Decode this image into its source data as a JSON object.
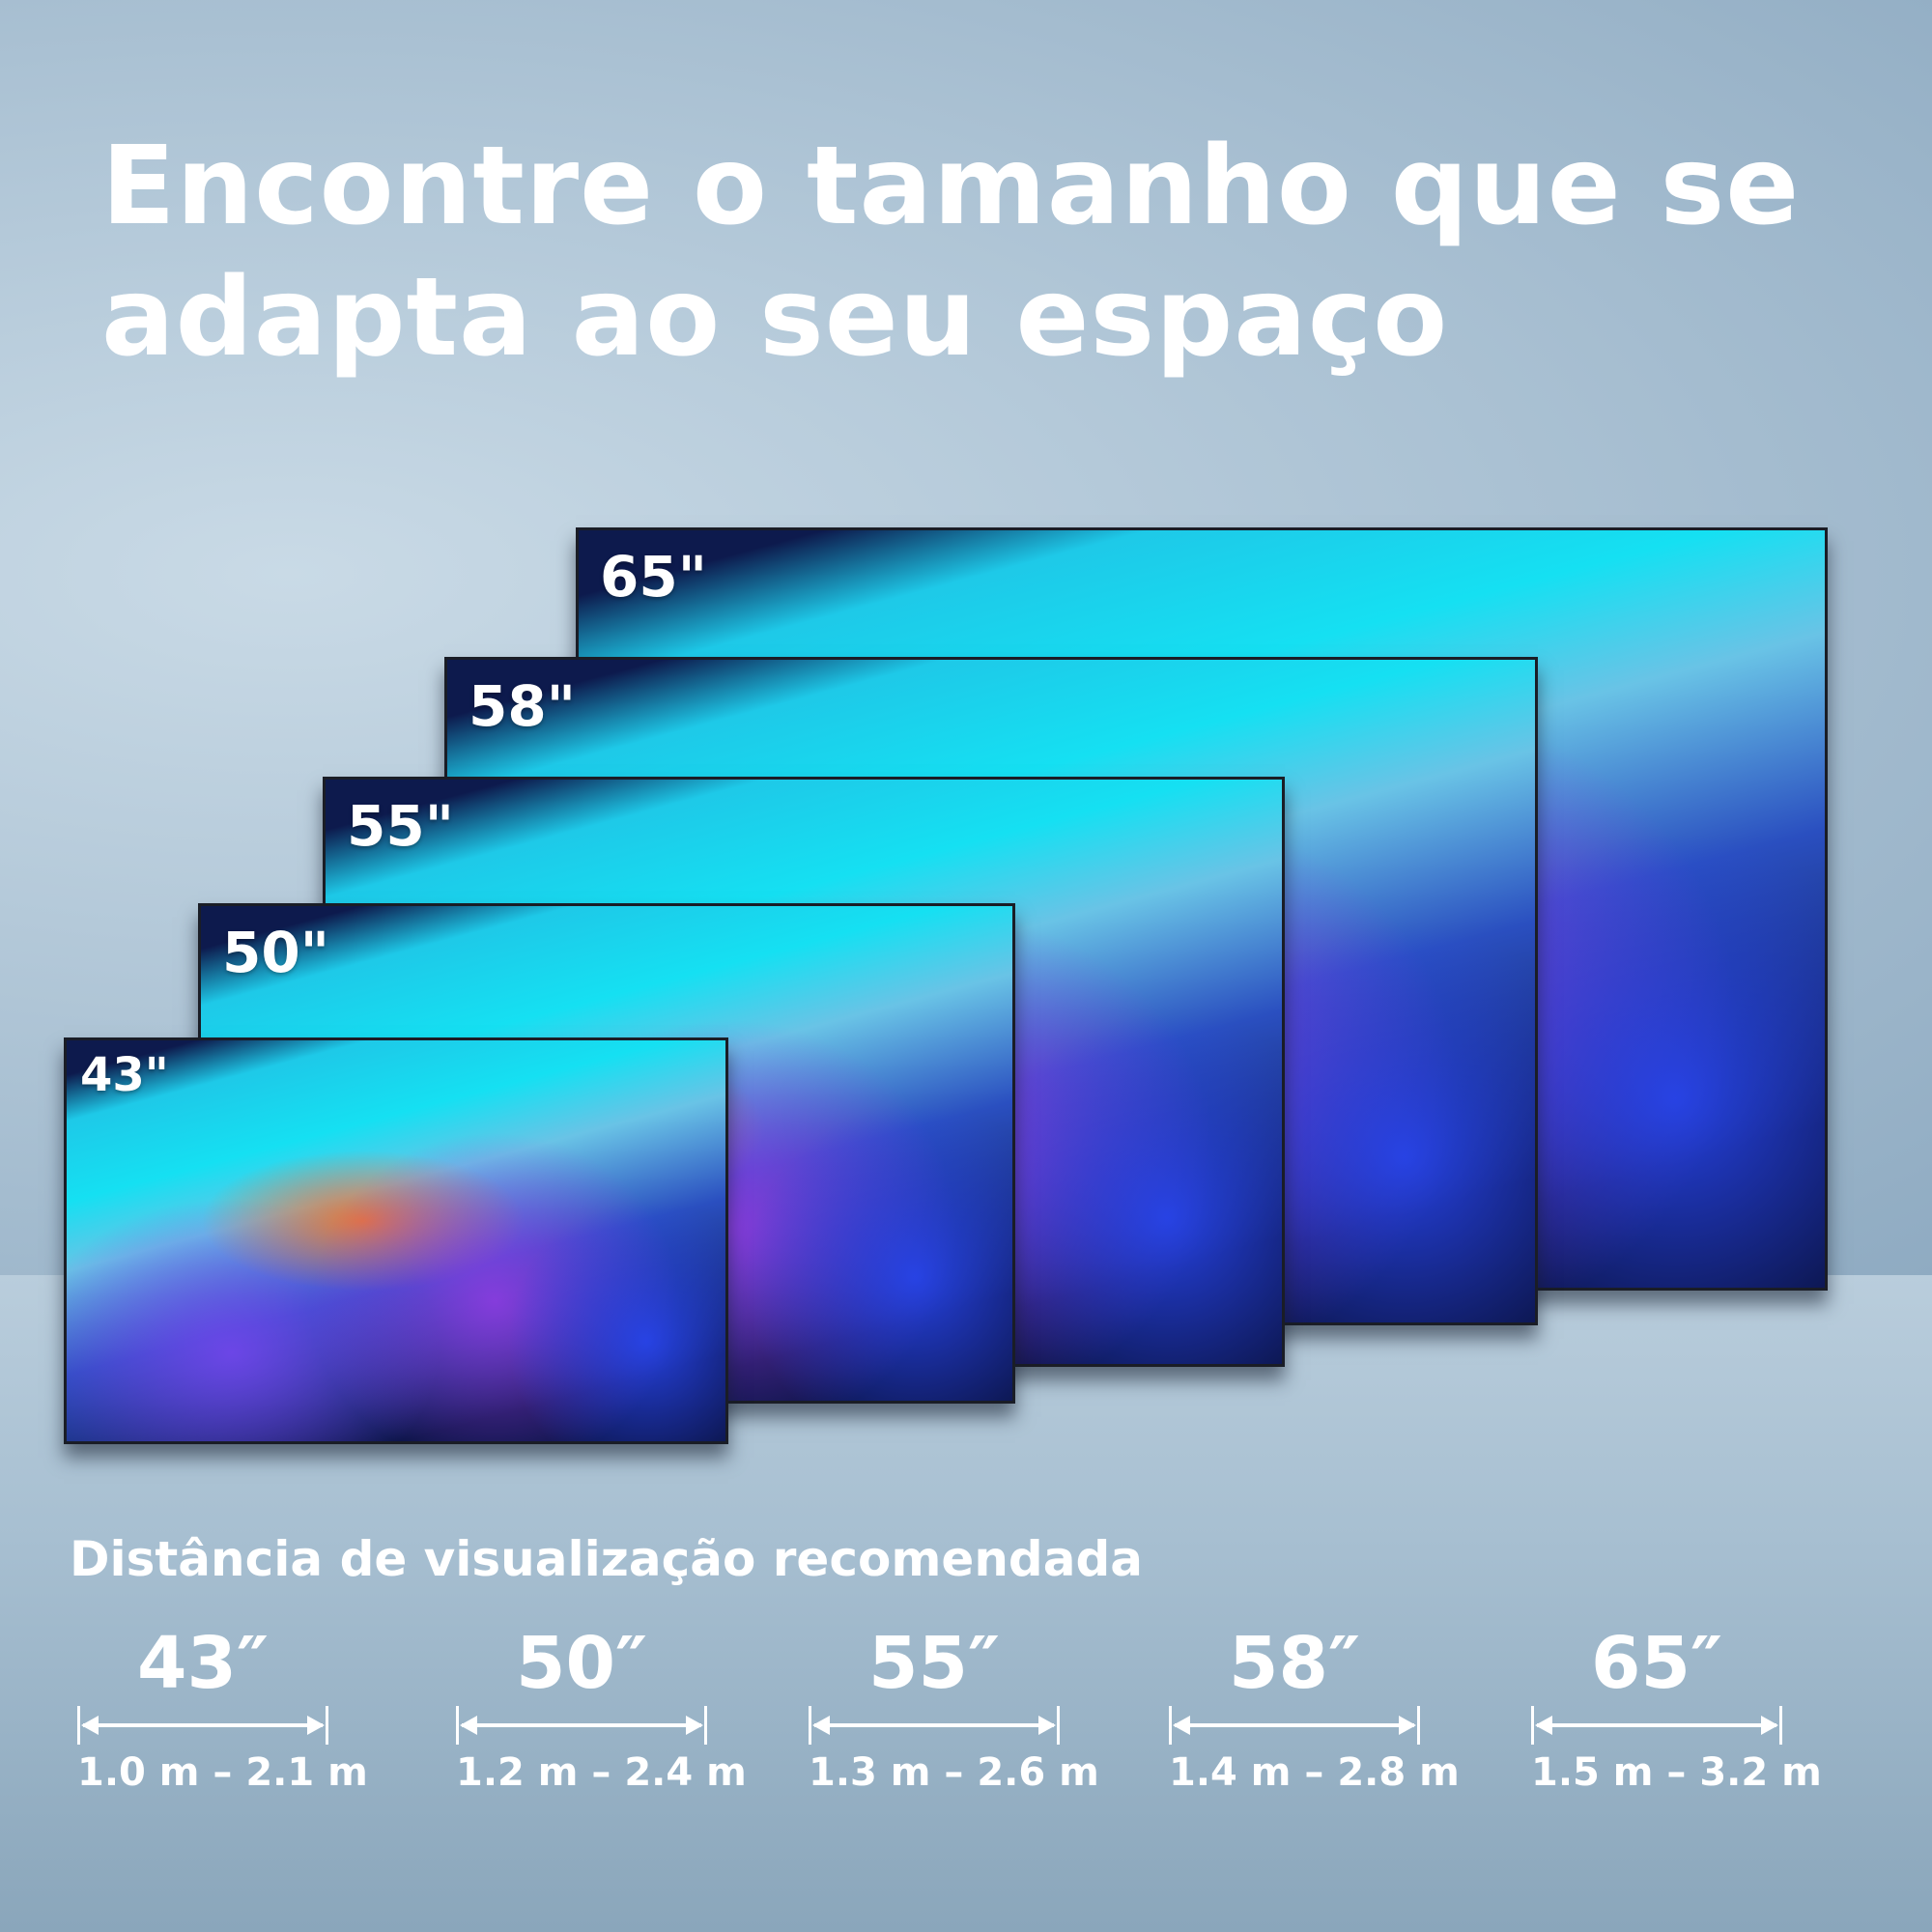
{
  "title": {
    "line1": "Encontre o tamanho que se",
    "line2": "adapta ao seu espaço"
  },
  "tvs": [
    {
      "label": "65\""
    },
    {
      "label": "58\""
    },
    {
      "label": "55\""
    },
    {
      "label": "50\""
    },
    {
      "label": "43\""
    }
  ],
  "distance": {
    "heading": "Distância de visualização recomendada",
    "items": [
      {
        "size": "43″",
        "range": "1.0 m – 2.1 m"
      },
      {
        "size": "50″",
        "range": "1.2 m – 2.4 m"
      },
      {
        "size": "55″",
        "range": "1.3 m – 2.6 m"
      },
      {
        "size": "58″",
        "range": "1.4 m – 2.8 m"
      },
      {
        "size": "65″",
        "range": "1.5 m – 3.2 m"
      }
    ]
  }
}
